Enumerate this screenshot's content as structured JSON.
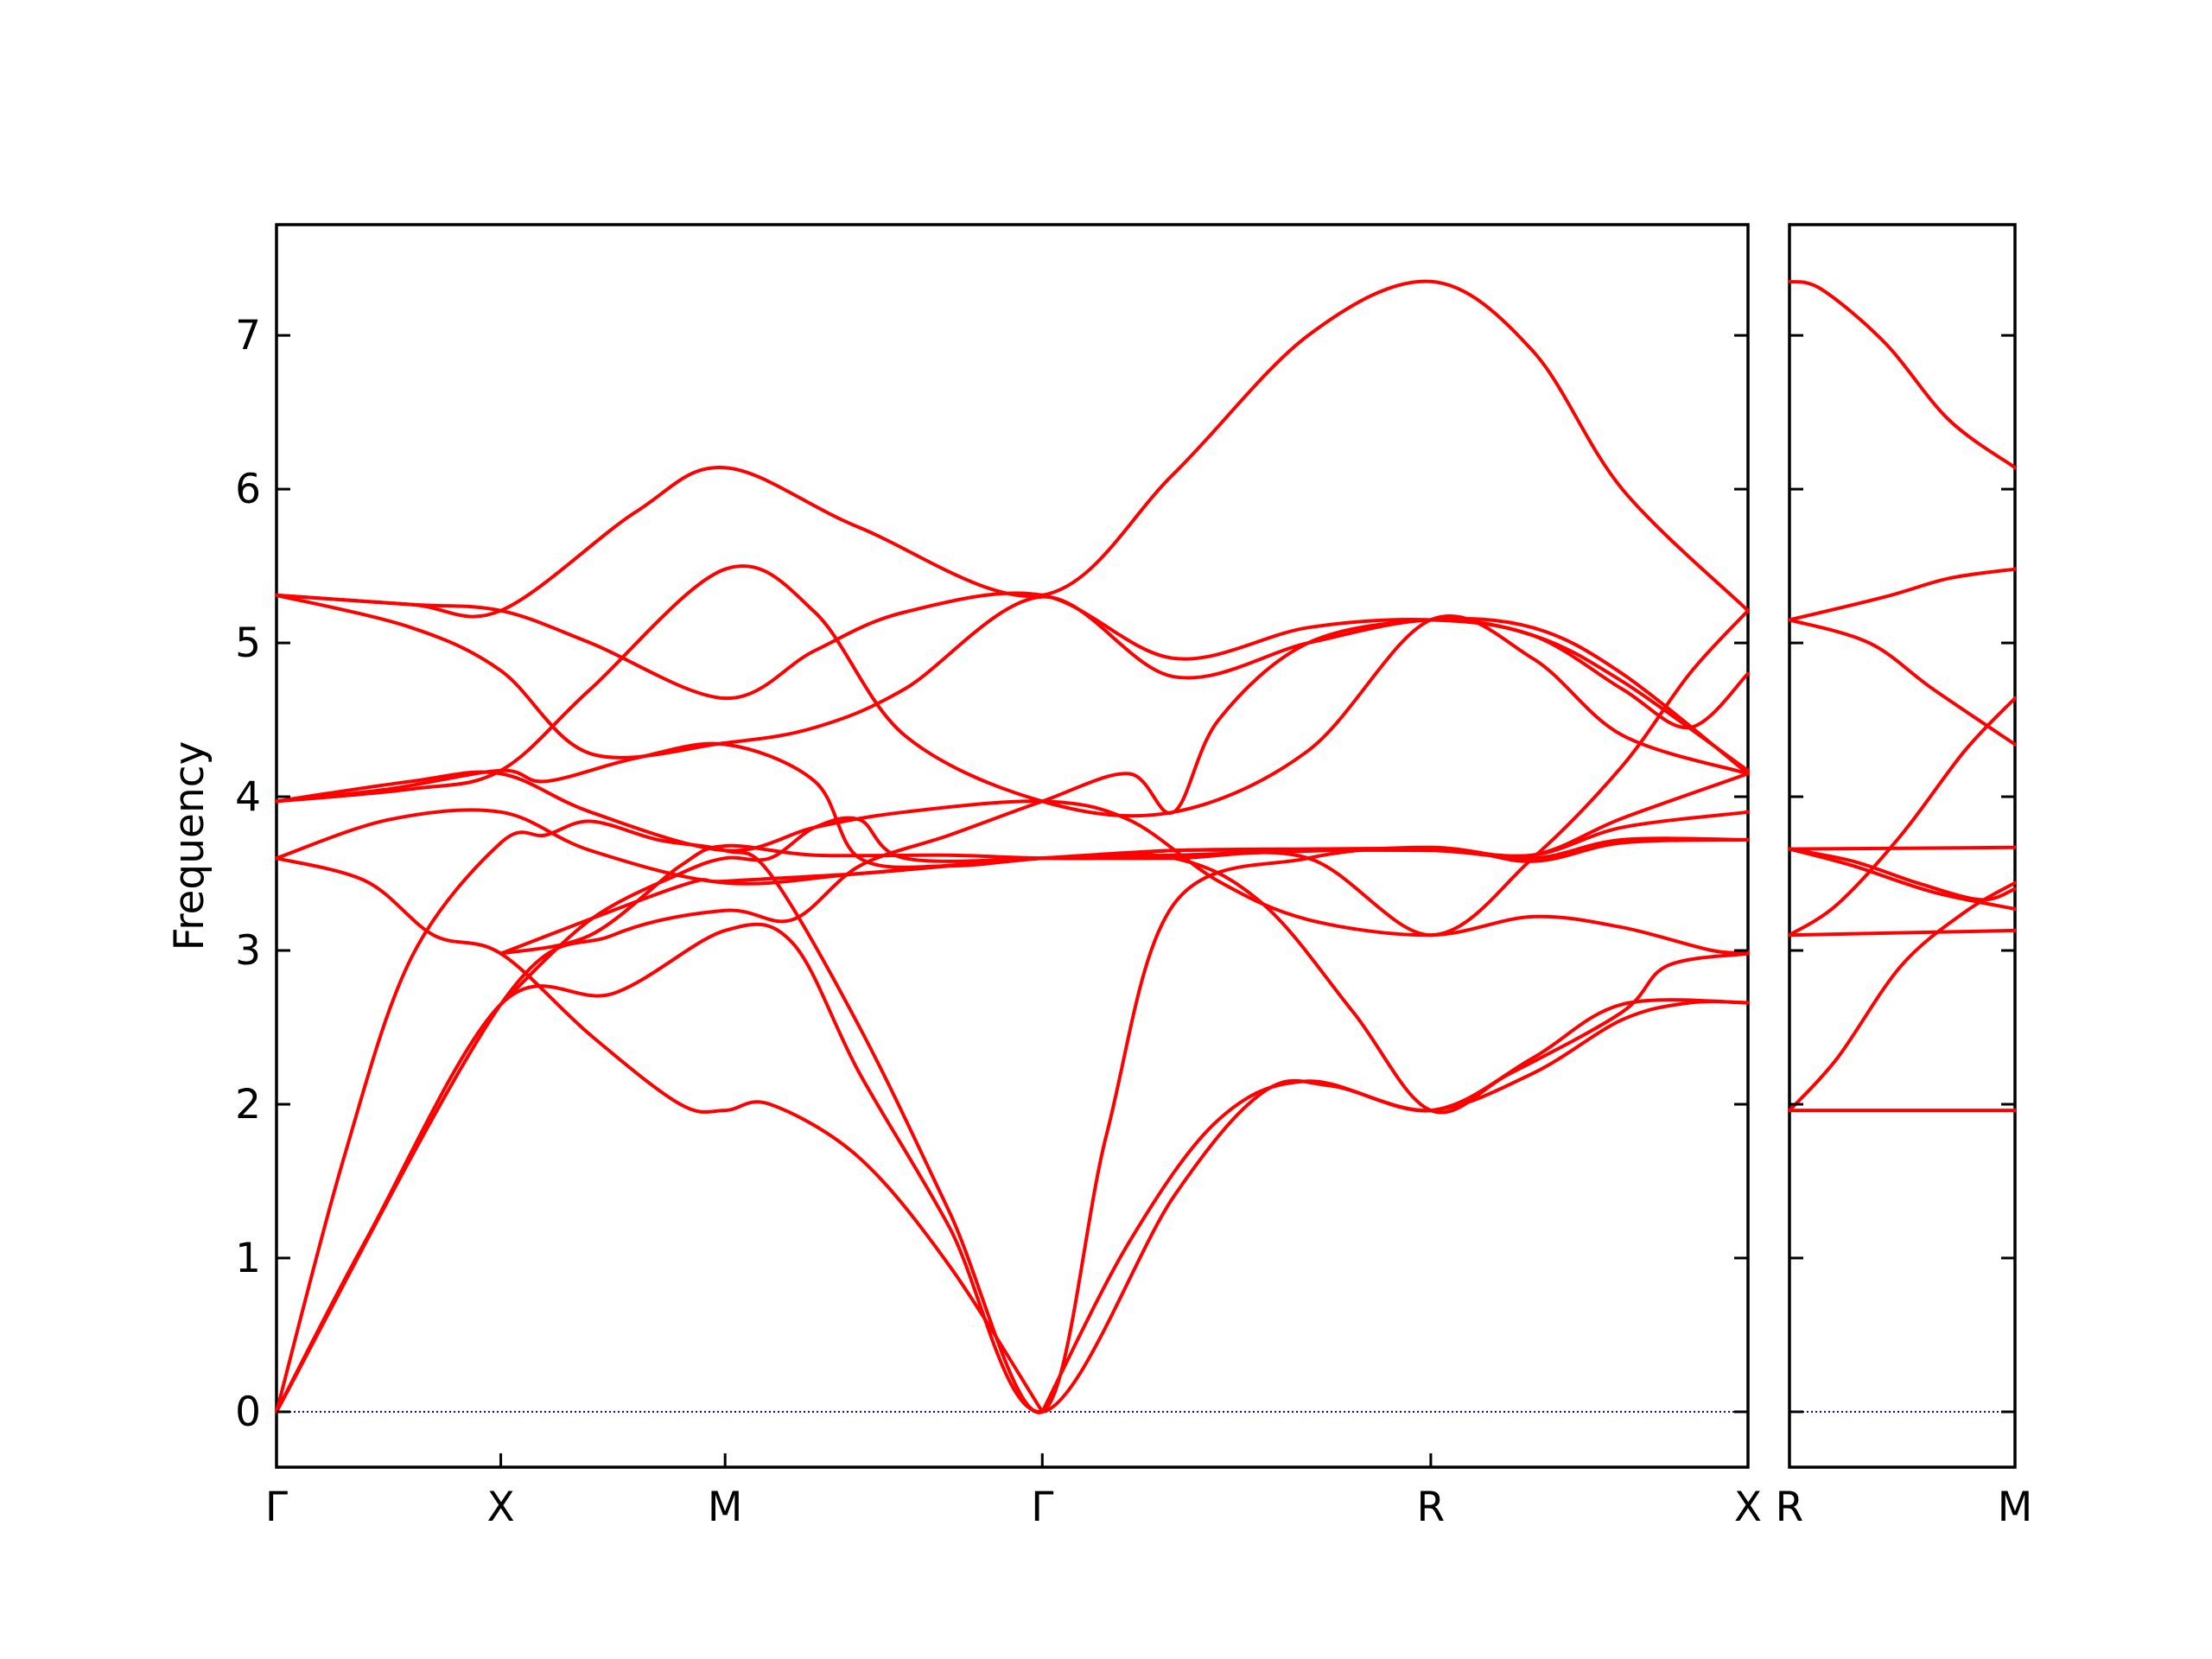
{
  "chart_data": {
    "type": "line",
    "ylabel": "Frequency",
    "ylim": [
      -0.36,
      7.72
    ],
    "yticks": [
      "0",
      "1",
      "2",
      "3",
      "4",
      "5",
      "6",
      "7"
    ],
    "ytick_values": [
      0,
      1,
      2,
      3,
      4,
      5,
      6,
      7
    ],
    "zero_line": true,
    "line_color": "#ff0000",
    "zero_line_color": "#0000aa",
    "panels": [
      {
        "xlabels": [
          "Γ",
          "X",
          "M",
          "Γ",
          "R",
          "X"
        ],
        "x": [
          0.0,
          0.5,
          1.0,
          1.7071,
          2.5731,
          3.2802
        ],
        "bands": [
          [
            [
              0.0,
              0.0
            ],
            [
              0.2,
              1.12
            ],
            [
              0.5,
              2.65
            ],
            [
              0.75,
              2.72
            ],
            [
              1.0,
              3.13
            ],
            [
              1.15,
              3.05
            ],
            [
              1.3,
              2.2
            ],
            [
              1.5,
              1.2
            ],
            [
              1.7071,
              0.0
            ],
            [
              2.0,
              1.4
            ],
            [
              2.2,
              2.08
            ],
            [
              2.35,
              2.12
            ],
            [
              2.5731,
              1.96
            ],
            [
              2.8,
              2.2
            ],
            [
              3.0,
              2.55
            ],
            [
              3.15,
              2.66
            ],
            [
              3.2802,
              2.66
            ]
          ],
          [
            [
              0.0,
              0.0
            ],
            [
              0.15,
              1.65
            ],
            [
              0.3,
              2.95
            ],
            [
              0.5,
              3.7
            ],
            [
              0.6,
              3.75
            ],
            [
              0.7,
              3.84
            ],
            [
              0.85,
              3.72
            ],
            [
              1.0,
              3.65
            ],
            [
              1.1,
              3.5
            ],
            [
              1.3,
              2.5
            ],
            [
              1.5,
              1.3
            ],
            [
              1.7071,
              0.0
            ],
            [
              1.85,
              1.8
            ],
            [
              2.0,
              3.3
            ],
            [
              2.3,
              3.6
            ],
            [
              2.5731,
              3.67
            ],
            [
              2.8,
              3.6
            ],
            [
              3.0,
              3.72
            ],
            [
              3.2802,
              3.72
            ]
          ],
          [
            [
              0.0,
              3.6
            ],
            [
              0.2,
              3.45
            ],
            [
              0.35,
              3.1
            ],
            [
              0.5,
              2.98
            ],
            [
              0.7,
              2.45
            ],
            [
              0.9,
              2.0
            ],
            [
              1.0,
              1.96
            ],
            [
              1.1,
              2.0
            ],
            [
              1.3,
              1.65
            ],
            [
              1.5,
              0.95
            ],
            [
              1.7071,
              0.0
            ]
          ],
          [
            [
              0.0,
              3.6
            ],
            [
              0.25,
              3.85
            ],
            [
              0.5,
              3.9
            ],
            [
              0.7,
              3.65
            ],
            [
              1.0,
              3.44
            ],
            [
              1.3,
              3.5
            ],
            [
              1.7071,
              3.6
            ],
            [
              2.0,
              3.6
            ],
            [
              2.2,
              3.3
            ],
            [
              2.4,
              2.6
            ],
            [
              2.5731,
              1.96
            ],
            [
              2.75,
              2.2
            ],
            [
              3.0,
              2.6
            ],
            [
              3.1,
              2.9
            ],
            [
              3.2802,
              2.98
            ]
          ],
          [
            [
              0.0,
              3.97
            ],
            [
              0.3,
              4.1
            ],
            [
              0.5,
              4.15
            ],
            [
              0.7,
              3.9
            ],
            [
              1.0,
              3.65
            ],
            [
              1.2,
              3.8
            ],
            [
              1.4,
              3.9
            ],
            [
              1.7071,
              3.97
            ],
            [
              1.9,
              3.85
            ],
            [
              2.1,
              3.45
            ],
            [
              2.3,
              3.2
            ],
            [
              2.5731,
              3.1
            ],
            [
              2.8,
              3.22
            ],
            [
              3.0,
              3.15
            ],
            [
              3.2,
              3.0
            ],
            [
              3.2802,
              2.99
            ]
          ],
          [
            [
              0.0,
              3.97
            ],
            [
              0.25,
              4.05
            ],
            [
              0.5,
              4.17
            ],
            [
              0.6,
              4.1
            ],
            [
              0.8,
              4.25
            ],
            [
              1.0,
              4.34
            ],
            [
              1.2,
              4.1
            ],
            [
              1.3,
              3.6
            ],
            [
              1.5,
              3.55
            ],
            [
              1.7071,
              3.6
            ],
            [
              2.0,
              3.65
            ],
            [
              2.2,
              3.65
            ],
            [
              2.5731,
              3.65
            ],
            [
              2.8,
              3.62
            ],
            [
              3.0,
              3.86
            ],
            [
              3.2802,
              4.15
            ]
          ],
          [
            [
              0.0,
              5.31
            ],
            [
              0.3,
              5.1
            ],
            [
              0.5,
              4.82
            ],
            [
              0.7,
              4.28
            ],
            [
              1.0,
              4.35
            ],
            [
              1.2,
              4.45
            ],
            [
              1.4,
              4.7
            ],
            [
              1.7071,
              5.3
            ],
            [
              2.0,
              4.78
            ],
            [
              2.3,
              5.0
            ],
            [
              2.5731,
              5.15
            ],
            [
              2.8,
              5.05
            ],
            [
              3.0,
              4.75
            ],
            [
              3.2802,
              4.17
            ]
          ],
          [
            [
              0.0,
              5.31
            ],
            [
              0.3,
              5.25
            ],
            [
              0.5,
              5.21
            ],
            [
              0.7,
              5.0
            ],
            [
              1.0,
              4.64
            ],
            [
              1.2,
              4.95
            ],
            [
              1.4,
              5.2
            ],
            [
              1.7071,
              5.31
            ],
            [
              2.0,
              4.9
            ],
            [
              2.3,
              5.1
            ],
            [
              2.5731,
              5.15
            ],
            [
              2.8,
              5.05
            ],
            [
              3.0,
              4.7
            ],
            [
              3.15,
              4.45
            ],
            [
              3.2802,
              4.8
            ]
          ],
          [
            [
              0.0,
              0.0
            ],
            [
              0.5,
              2.65
            ],
            [
              0.75,
              3.1
            ],
            [
              1.0,
              3.26
            ],
            [
              1.15,
              3.2
            ],
            [
              1.3,
              3.55
            ],
            [
              1.5,
              3.75
            ],
            [
              1.7071,
              3.97
            ],
            [
              1.9,
              4.15
            ],
            [
              2.0,
              3.9
            ],
            [
              2.1,
              4.5
            ],
            [
              2.3,
              5.0
            ],
            [
              2.5731,
              5.15
            ],
            [
              2.8,
              5.1
            ],
            [
              3.0,
              4.8
            ],
            [
              3.2802,
              4.15
            ]
          ],
          [
            [
              0.5,
              2.65
            ],
            [
              0.7,
              3.2
            ],
            [
              0.9,
              3.5
            ],
            [
              1.0,
              3.6
            ],
            [
              1.1,
              3.6
            ],
            [
              1.2,
              3.8
            ],
            [
              1.3,
              3.85
            ],
            [
              1.4,
              3.6
            ],
            [
              1.7071,
              3.6
            ],
            [
              2.0,
              3.65
            ],
            [
              2.3,
              3.66
            ],
            [
              2.5731,
              3.66
            ],
            [
              2.8,
              3.62
            ],
            [
              3.0,
              3.8
            ],
            [
              3.2802,
              3.9
            ]
          ],
          [
            [
              0.5,
              2.98
            ],
            [
              0.7,
              3.1
            ],
            [
              0.9,
              3.55
            ],
            [
              1.0,
              3.68
            ],
            [
              1.2,
              3.62
            ],
            [
              1.5,
              3.62
            ],
            [
              1.7071,
              3.6
            ],
            [
              2.0,
              3.6
            ],
            [
              2.3,
              3.6
            ],
            [
              2.5731,
              3.1
            ],
            [
              2.8,
              3.6
            ],
            [
              3.0,
              4.2
            ],
            [
              3.15,
              4.8
            ],
            [
              3.2802,
              5.21
            ]
          ],
          [
            [
              0.0,
              3.97
            ],
            [
              0.3,
              4.05
            ],
            [
              0.5,
              4.17
            ],
            [
              0.7,
              4.7
            ],
            [
              1.0,
              5.48
            ],
            [
              1.2,
              5.2
            ],
            [
              1.4,
              4.4
            ],
            [
              1.7071,
              3.97
            ],
            [
              2.0,
              3.9
            ],
            [
              2.3,
              4.3
            ],
            [
              2.5731,
              5.15
            ],
            [
              2.8,
              4.9
            ],
            [
              3.0,
              4.4
            ],
            [
              3.2802,
              4.15
            ]
          ],
          [
            [
              0.0,
              5.31
            ],
            [
              0.3,
              5.25
            ],
            [
              0.5,
              5.21
            ],
            [
              0.8,
              5.85
            ],
            [
              1.0,
              6.14
            ],
            [
              1.3,
              5.75
            ],
            [
              1.7071,
              5.31
            ],
            [
              2.0,
              6.1
            ],
            [
              2.3,
              7.0
            ],
            [
              2.5731,
              7.35
            ],
            [
              2.8,
              6.9
            ],
            [
              3.0,
              6.0
            ],
            [
              3.2802,
              5.21
            ]
          ],
          [
            [
              0.5,
              2.98
            ],
            [
              0.9,
              3.42
            ],
            [
              1.0,
              3.45
            ],
            [
              1.3,
              3.5
            ],
            [
              1.5,
              3.55
            ],
            [
              1.7071,
              3.6
            ],
            [
              2.0,
              3.62
            ],
            [
              2.5731,
              3.66
            ],
            [
              2.8,
              3.58
            ],
            [
              3.0,
              3.7
            ],
            [
              3.2802,
              3.72
            ]
          ],
          [
            [
              1.7071,
              0.0
            ],
            [
              1.9,
              1.1
            ],
            [
              2.1,
              1.9
            ],
            [
              2.3,
              2.15
            ],
            [
              2.5731,
              1.96
            ],
            [
              2.8,
              2.3
            ],
            [
              3.0,
              2.65
            ],
            [
              3.2802,
              2.66
            ]
          ]
        ]
      },
      {
        "xlabels": [
          "R",
          "M"
        ],
        "x": [
          0.0,
          0.7071
        ],
        "bands": [
          [
            [
              0.0,
              1.96
            ],
            [
              0.7071,
              1.96
            ]
          ],
          [
            [
              0.0,
              1.96
            ],
            [
              0.15,
              2.3
            ],
            [
              0.35,
              2.9
            ],
            [
              0.55,
              3.25
            ],
            [
              0.7071,
              3.44
            ]
          ],
          [
            [
              0.0,
              3.1
            ],
            [
              0.7071,
              3.13
            ]
          ],
          [
            [
              0.0,
              3.1
            ],
            [
              0.15,
              3.3
            ],
            [
              0.35,
              3.75
            ],
            [
              0.55,
              4.3
            ],
            [
              0.7071,
              4.64
            ]
          ],
          [
            [
              0.0,
              3.66
            ],
            [
              0.7071,
              3.67
            ]
          ],
          [
            [
              0.0,
              3.66
            ],
            [
              0.2,
              3.55
            ],
            [
              0.45,
              3.38
            ],
            [
              0.7071,
              3.27
            ]
          ],
          [
            [
              0.0,
              3.66
            ],
            [
              0.2,
              3.58
            ],
            [
              0.4,
              3.44
            ],
            [
              0.6,
              3.33
            ],
            [
              0.7071,
              3.4
            ]
          ],
          [
            [
              0.0,
              5.15
            ],
            [
              0.25,
              5.0
            ],
            [
              0.45,
              4.7
            ],
            [
              0.7071,
              4.34
            ]
          ],
          [
            [
              0.0,
              5.15
            ],
            [
              0.3,
              5.3
            ],
            [
              0.5,
              5.42
            ],
            [
              0.7071,
              5.48
            ]
          ],
          [
            [
              0.0,
              7.35
            ],
            [
              0.1,
              7.3
            ],
            [
              0.3,
              6.95
            ],
            [
              0.5,
              6.45
            ],
            [
              0.7071,
              6.14
            ]
          ]
        ]
      }
    ]
  }
}
